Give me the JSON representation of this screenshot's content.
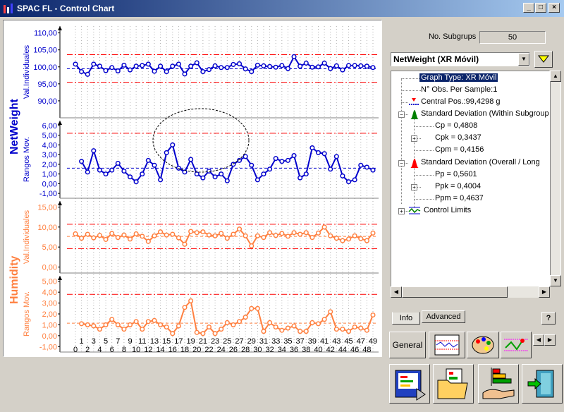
{
  "window": {
    "title": "SPAC FL - Control Chart",
    "min": "_",
    "max": "□",
    "close": "×"
  },
  "header": {
    "subgroups_label": "No. Subgrups",
    "subgroups_value": "50"
  },
  "variable_select": {
    "selected": "NetWeight (XR Móvil)"
  },
  "tree": {
    "graph_type": "Graph Type: XR Móvil",
    "obs_per_sample": "N° Obs. Per Sample:1",
    "central_pos": "Central Pos.:99,4298 g",
    "std_within": "Standard Deviation (Within Subgroups)",
    "cp": "Cp = 0,4808",
    "cpk": "Cpk = 0,3437",
    "cpm": "Cpm = 0,4156",
    "std_overall": "Standard Deviation (Overall / Long",
    "pp": "Pp = 0,5601",
    "ppk": "Ppk = 0,4004",
    "ppm": "Ppm = 0,4637",
    "control_limits": "Control Limits"
  },
  "tabs": {
    "info": "Info",
    "advanced": "Advanced",
    "help": "?"
  },
  "bottom_tabs": {
    "general": "General"
  },
  "colors": {
    "netweight": "#0000cc",
    "humidity": "#ff8040",
    "limit": "#ff0000",
    "center": "#0000cc"
  },
  "chart_data": [
    {
      "type": "line",
      "name": "netweight-individual",
      "group_label": "NetWeight",
      "ylabel": "Val.Individuales",
      "ylim": [
        85,
        112
      ],
      "ticks": [
        "110,00",
        "105,00",
        "100,00",
        "95,00",
        "90,00"
      ],
      "tick_values": [
        110,
        105,
        100,
        95,
        90
      ],
      "ucl": 103.6,
      "lcl": 95.5,
      "center": 99.43,
      "x": [
        0,
        1,
        2,
        3,
        4,
        5,
        6,
        7,
        8,
        9,
        10,
        11,
        12,
        13,
        14,
        15,
        16,
        17,
        18,
        19,
        20,
        21,
        22,
        23,
        24,
        25,
        26,
        27,
        28,
        29,
        30,
        31,
        32,
        33,
        34,
        35,
        36,
        37,
        38,
        39,
        40,
        41,
        42,
        43,
        44,
        45,
        46,
        47,
        48,
        49
      ],
      "values": [
        100.8,
        98.6,
        97.8,
        100.8,
        100.2,
        98.9,
        99.8,
        98.8,
        100.5,
        99.1,
        100.2,
        100.4,
        100.8,
        98.7,
        100.2,
        98.6,
        100.2,
        100.8,
        97.9,
        100.2,
        101.2,
        98.6,
        99.2,
        100.3,
        99.8,
        99.8,
        100.7,
        100.9,
        99.4,
        98.6,
        100.5,
        100.3,
        100.1,
        99.9,
        100.4,
        99.5,
        103.0,
        100.2,
        101.1,
        99.9,
        100.0,
        101.1,
        99.5,
        100.3,
        99.1,
        100.4,
        100.4,
        100.3,
        100.2,
        99.8
      ]
    },
    {
      "type": "line",
      "name": "netweight-moving-range",
      "group_label": "NetWeight",
      "ylabel": "Rangos Mov.",
      "ylim": [
        -1.5,
        6.5
      ],
      "ticks": [
        "6,00",
        "5,00",
        "4,00",
        "3,00",
        "2,00",
        "1,00",
        "0,00",
        "-1,00"
      ],
      "tick_values": [
        6,
        5,
        4,
        3,
        2,
        1,
        0,
        -1
      ],
      "ucl": 5.2,
      "lcl": null,
      "center": 1.6,
      "x": [
        1,
        2,
        3,
        4,
        5,
        6,
        7,
        8,
        9,
        10,
        11,
        12,
        13,
        14,
        15,
        16,
        17,
        18,
        19,
        20,
        21,
        22,
        23,
        24,
        25,
        26,
        27,
        28,
        29,
        30,
        31,
        32,
        33,
        34,
        35,
        36,
        37,
        38,
        39,
        40,
        41,
        42,
        43,
        44,
        45,
        46,
        47,
        48,
        49
      ],
      "values": [
        2.3,
        1.2,
        3.4,
        1.4,
        1.0,
        1.4,
        2.1,
        1.3,
        0.7,
        0.2,
        1.0,
        2.4,
        1.9,
        0.4,
        3.2,
        4.0,
        1.6,
        1.2,
        2.5,
        1.0,
        0.6,
        1.3,
        0.7,
        1.0,
        0.3,
        2.0,
        2.4,
        2.8,
        1.9,
        0.4,
        1.0,
        1.5,
        2.6,
        2.3,
        2.4,
        2.9,
        0.6,
        1.0,
        3.7,
        3.2,
        3.1,
        1.5,
        2.8,
        0.8,
        0.2,
        0.4,
        1.9,
        1.7,
        1.4
      ]
    },
    {
      "type": "line",
      "name": "humidity-individual",
      "group_label": "Humidity",
      "ylabel": "Val.Individuales",
      "ylim": [
        -1.5,
        16.5
      ],
      "ticks": [
        "15,00",
        "10,00",
        "5,00",
        "0,00"
      ],
      "tick_values": [
        15,
        10,
        5,
        0
      ],
      "ucl": 10.7,
      "lcl": 4.6,
      "center": 7.65,
      "x": [
        0,
        1,
        2,
        3,
        4,
        5,
        6,
        7,
        8,
        9,
        10,
        11,
        12,
        13,
        14,
        15,
        16,
        17,
        18,
        19,
        20,
        21,
        22,
        23,
        24,
        25,
        26,
        27,
        28,
        29,
        30,
        31,
        32,
        33,
        34,
        35,
        36,
        37,
        38,
        39,
        40,
        41,
        42,
        43,
        44,
        45,
        46,
        47,
        48,
        49
      ],
      "values": [
        8.3,
        7.2,
        8.2,
        7.3,
        7.9,
        6.9,
        8.4,
        7.4,
        8.0,
        7.0,
        8.3,
        7.7,
        6.4,
        7.8,
        8.8,
        8.0,
        8.2,
        7.3,
        5.7,
        8.9,
        8.6,
        8.8,
        8.0,
        7.8,
        8.4,
        7.2,
        8.2,
        9.5,
        7.8,
        5.3,
        7.8,
        7.4,
        8.6,
        7.9,
        8.4,
        7.7,
        8.6,
        8.2,
        8.6,
        7.4,
        8.5,
        10.0,
        7.8,
        7.2,
        6.6,
        7.0,
        7.8,
        7.1,
        6.6,
        8.5
      ]
    },
    {
      "type": "line",
      "name": "humidity-moving-range",
      "group_label": "Humidity",
      "ylabel": "Rangos Mov.",
      "ylim": [
        -1.5,
        5.5
      ],
      "ticks": [
        "5,00",
        "4,00",
        "3,00",
        "2,00",
        "1,00",
        "0,00",
        "-1,00"
      ],
      "tick_values": [
        5,
        4,
        3,
        2,
        1,
        0,
        -1
      ],
      "ucl": 3.8,
      "lcl": null,
      "center": 1.15,
      "x": [
        1,
        2,
        3,
        4,
        5,
        6,
        7,
        8,
        9,
        10,
        11,
        12,
        13,
        14,
        15,
        16,
        17,
        18,
        19,
        20,
        21,
        22,
        23,
        24,
        25,
        26,
        27,
        28,
        29,
        30,
        31,
        32,
        33,
        34,
        35,
        36,
        37,
        38,
        39,
        40,
        41,
        42,
        43,
        44,
        45,
        46,
        47,
        48,
        49
      ],
      "values": [
        1.1,
        1.0,
        0.9,
        0.6,
        1.0,
        1.5,
        1.0,
        0.6,
        1.0,
        1.3,
        0.6,
        1.3,
        1.4,
        1.0,
        0.8,
        0.2,
        0.9,
        2.6,
        3.2,
        0.3,
        0.2,
        0.8,
        0.2,
        0.6,
        1.2,
        1.0,
        1.3,
        1.7,
        2.5,
        2.5,
        0.4,
        1.2,
        0.8,
        0.5,
        0.7,
        0.9,
        0.4,
        0.4,
        1.2,
        1.1,
        1.5,
        2.2,
        0.6,
        0.6,
        0.4,
        0.8,
        0.7,
        0.5,
        1.9
      ]
    }
  ],
  "x_ticks_row1": [
    "1",
    "3",
    "5",
    "7",
    "9",
    "11",
    "13",
    "15",
    "17",
    "19",
    "21",
    "23",
    "25",
    "27",
    "29",
    "31",
    "33",
    "35",
    "37",
    "39",
    "41",
    "43",
    "45",
    "47",
    "49"
  ],
  "x_ticks_row2": [
    "0",
    "2",
    "4",
    "6",
    "8",
    "10",
    "12",
    "14",
    "16",
    "18",
    "20",
    "22",
    "24",
    "26",
    "28",
    "30",
    "32",
    "34",
    "36",
    "38",
    "40",
    "42",
    "44",
    "46",
    "48"
  ]
}
